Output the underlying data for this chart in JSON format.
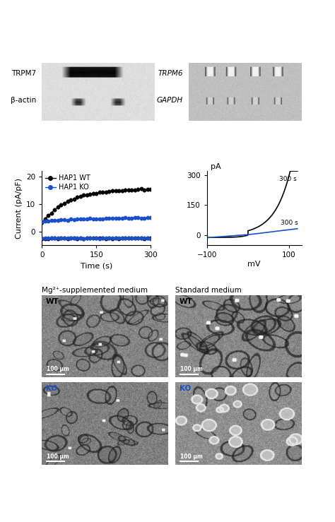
{
  "top_left_label": "TRPM7",
  "top_left_sublabel": "β-actin",
  "top_right_label1": "TRPM6",
  "top_right_label2": "GAPDH",
  "time_series": {
    "xlabel": "Time (s)",
    "ylabel": "Current (pA/pF)",
    "xlim": [
      0,
      300
    ],
    "ylim": [
      -5,
      22
    ],
    "xticks": [
      0,
      150,
      300
    ],
    "yticks": [
      0,
      10,
      20
    ],
    "legend": [
      "HAP1 WT",
      "HAP1 KO"
    ],
    "wt_color": "#000000",
    "ko_color": "#1a4fcc",
    "wt_positive_start": 3.0,
    "wt_positive_end": 15.5,
    "ko_positive_start": 3.5,
    "ko_positive_end": 5.0,
    "wt_negative_start": -2.5,
    "ko_negative_start": -2.5,
    "n_points": 35
  },
  "iv_curve": {
    "xlabel": "mV",
    "ylabel": "pA",
    "xlim": [
      -100,
      130
    ],
    "ylim": [
      -50,
      320
    ],
    "xticks": [
      -100,
      100
    ],
    "yticks": [
      0,
      150,
      300
    ],
    "wt_label": "300 s",
    "ko_label": "300 s",
    "wt_color": "#000000",
    "ko_color": "#1a4fcc"
  },
  "cell_images": {
    "col_labels": [
      "Mg²⁺-supplemented medium",
      "Standard medium"
    ],
    "row_labels": [
      "WT",
      "KO"
    ],
    "wt_label_color": "#000000",
    "ko_label_color": "#1a4fcc",
    "scale_label": "100 μm",
    "scale_color": "#ffffff"
  },
  "bg_color": "#ffffff",
  "figure_width": 4.74,
  "figure_height": 7.39
}
